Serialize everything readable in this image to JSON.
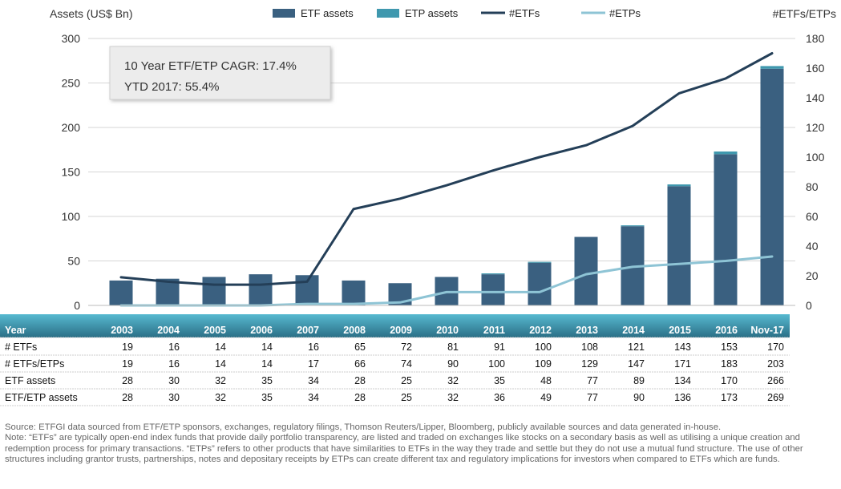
{
  "chart_data": {
    "type": "bar",
    "categories": [
      "2003",
      "2004",
      "2005",
      "2006",
      "2007",
      "2008",
      "2009",
      "2010",
      "2011",
      "2012",
      "2013",
      "2014",
      "2015",
      "2016",
      "Nov-17"
    ],
    "ylabel": "Assets (US$ Bn)",
    "y2label": "#ETFs/ETPs",
    "ylim": [
      0,
      300
    ],
    "yticks": [
      0,
      50,
      100,
      150,
      200,
      250,
      300
    ],
    "y2lim": [
      0,
      180
    ],
    "y2ticks": [
      0,
      20,
      40,
      60,
      80,
      100,
      120,
      140,
      160,
      180
    ],
    "grid": true,
    "legend": "top",
    "series": [
      {
        "name": "ETF assets",
        "type": "bar",
        "axis": "left",
        "color": "#3a6080",
        "values": [
          28,
          30,
          32,
          35,
          34,
          28,
          25,
          32,
          35,
          48,
          77,
          89,
          134,
          170,
          266
        ]
      },
      {
        "name": "ETP assets",
        "type": "bar-stacked",
        "axis": "left",
        "color": "#3f98ae",
        "values": [
          0,
          0,
          0,
          0,
          0,
          0,
          0,
          0,
          1,
          1,
          0,
          1,
          2,
          3,
          3
        ]
      },
      {
        "name": "#ETFs",
        "type": "line",
        "axis": "right",
        "color": "#243f58",
        "values": [
          19,
          16,
          14,
          14,
          16,
          65,
          72,
          81,
          91,
          100,
          108,
          121,
          143,
          153,
          170
        ]
      },
      {
        "name": "#ETPs",
        "type": "line",
        "axis": "right",
        "color": "#8ec4d5",
        "values": [
          0,
          0,
          0,
          0,
          1,
          1,
          2,
          9,
          9,
          9,
          21,
          26,
          28,
          30,
          33
        ]
      }
    ],
    "annotation": [
      "10 Year ETF/ETP CAGR: 17.4%",
      "YTD 2017: 55.4%"
    ]
  },
  "table": {
    "header": "Year",
    "rows": [
      {
        "label": "# ETFs",
        "values": [
          "19",
          "16",
          "14",
          "14",
          "16",
          "65",
          "72",
          "81",
          "91",
          "100",
          "108",
          "121",
          "143",
          "153",
          "170"
        ]
      },
      {
        "label": "# ETFs/ETPs",
        "values": [
          "19",
          "16",
          "14",
          "14",
          "17",
          "66",
          "74",
          "90",
          "100",
          "109",
          "129",
          "147",
          "171",
          "183",
          "203"
        ]
      },
      {
        "label": "ETF assets",
        "values": [
          "28",
          "30",
          "32",
          "35",
          "34",
          "28",
          "25",
          "32",
          "35",
          "48",
          "77",
          "89",
          "134",
          "170",
          "266"
        ]
      },
      {
        "label": "ETF/ETP assets",
        "values": [
          "28",
          "30",
          "32",
          "35",
          "34",
          "28",
          "25",
          "32",
          "36",
          "49",
          "77",
          "90",
          "136",
          "173",
          "269"
        ]
      }
    ]
  },
  "footnote": {
    "source": "Source: ETFGI data sourced from ETF/ETP sponsors, exchanges, regulatory filings, Thomson Reuters/Lipper, Bloomberg, publicly available sources and data generated in-house.",
    "note": "Note: “ETFs” are typically open-end index funds that provide daily portfolio transparency, are listed and traded on exchanges like stocks on a secondary basis as well as utilising a unique creation and redemption process for primary transactions. “ETPs” refers to other products that have similarities to ETFs in the way they trade and settle but they do not use a mutual fund structure. The use of other structures including grantor trusts, partnerships, notes and depositary receipts by ETPs can create different tax and regulatory implications for investors when compared to ETFs which are funds."
  }
}
